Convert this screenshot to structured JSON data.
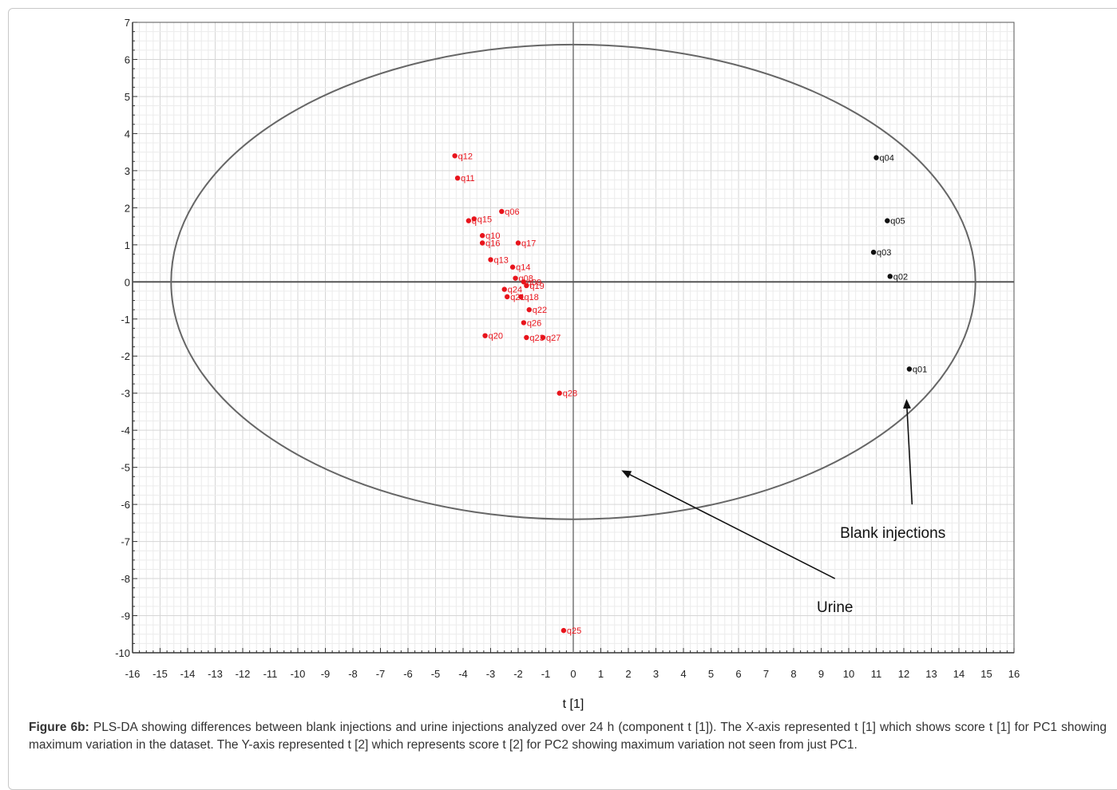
{
  "chart_data": {
    "type": "scatter",
    "xlabel": "t [1]",
    "ylabel": "",
    "xlim": [
      -16,
      16
    ],
    "ylim": [
      -10,
      7
    ],
    "xticks": [
      -16,
      -15,
      -14,
      -13,
      -12,
      -11,
      -10,
      -9,
      -8,
      -7,
      -6,
      -5,
      -4,
      -3,
      -2,
      -1,
      0,
      1,
      2,
      3,
      4,
      5,
      6,
      7,
      8,
      9,
      10,
      11,
      12,
      13,
      14,
      15,
      16
    ],
    "yticks": [
      7,
      6,
      5,
      4,
      3,
      2,
      1,
      0,
      -1,
      -2,
      -3,
      -4,
      -5,
      -6,
      -7,
      -8,
      -9,
      -10
    ],
    "grid": true,
    "ellipse": {
      "rx": 14.6,
      "ry": 6.4,
      "center": [
        0,
        0
      ]
    },
    "series": [
      {
        "color": "#e8141c",
        "points": [
          {
            "label": "q12",
            "x": -4.3,
            "y": 3.4
          },
          {
            "label": "q11",
            "x": -4.2,
            "y": 2.8
          },
          {
            "label": "q06",
            "x": -2.6,
            "y": 1.9
          },
          {
            "label": "q15",
            "x": -3.6,
            "y": 1.7
          },
          {
            "label": "q",
            "x": -3.8,
            "y": 1.65
          },
          {
            "label": "q10",
            "x": -3.3,
            "y": 1.25
          },
          {
            "label": "q16",
            "x": -3.3,
            "y": 1.05
          },
          {
            "label": "q17",
            "x": -2.0,
            "y": 1.05
          },
          {
            "label": "q13",
            "x": -3.0,
            "y": 0.6
          },
          {
            "label": "q14",
            "x": -2.2,
            "y": 0.4
          },
          {
            "label": "q08",
            "x": -2.1,
            "y": 0.1
          },
          {
            "label": "q09",
            "x": -1.8,
            "y": 0.0
          },
          {
            "label": "q19",
            "x": -1.7,
            "y": -0.1
          },
          {
            "label": "q24",
            "x": -2.5,
            "y": -0.2
          },
          {
            "label": "q21",
            "x": -2.4,
            "y": -0.4
          },
          {
            "label": "q18",
            "x": -1.9,
            "y": -0.4
          },
          {
            "label": "q22",
            "x": -1.6,
            "y": -0.75
          },
          {
            "label": "q26",
            "x": -1.8,
            "y": -1.1
          },
          {
            "label": "q20",
            "x": -3.2,
            "y": -1.45
          },
          {
            "label": "q23",
            "x": -1.7,
            "y": -1.5
          },
          {
            "label": "q27",
            "x": -1.1,
            "y": -1.5
          },
          {
            "label": "q28",
            "x": -0.5,
            "y": -3.0
          },
          {
            "label": "q25",
            "x": -0.35,
            "y": -9.4
          }
        ]
      },
      {
        "color": "#111111",
        "points": [
          {
            "label": "q04",
            "x": 11.0,
            "y": 3.35
          },
          {
            "label": "q05",
            "x": 11.4,
            "y": 1.65
          },
          {
            "label": "q03",
            "x": 10.9,
            "y": 0.8
          },
          {
            "label": "q02",
            "x": 11.5,
            "y": 0.15
          },
          {
            "label": "q01",
            "x": 12.2,
            "y": -2.35
          }
        ]
      }
    ],
    "annotations": [
      {
        "text": "Blank injections",
        "label_at": [
          11.6,
          -6.9
        ],
        "arrow_from": [
          12.3,
          -6.0
        ],
        "arrow_to": [
          12.1,
          -3.2
        ]
      },
      {
        "text": "Urine",
        "label_at": [
          9.5,
          -8.9
        ],
        "arrow_from": [
          9.5,
          -8.0
        ],
        "arrow_to": [
          1.8,
          -5.1
        ]
      }
    ]
  },
  "caption": {
    "bold": "Figure 6b:",
    "text": " PLS-DA showing differences between blank injections and urine injections analyzed over 24 h (component t [1]). The X-axis represented t [1] which shows score t [1] for PC1 showing maximum variation in the dataset. The Y-axis represented t [2] which represents score t [2] for PC2 showing maximum variation not seen from just PC1."
  }
}
